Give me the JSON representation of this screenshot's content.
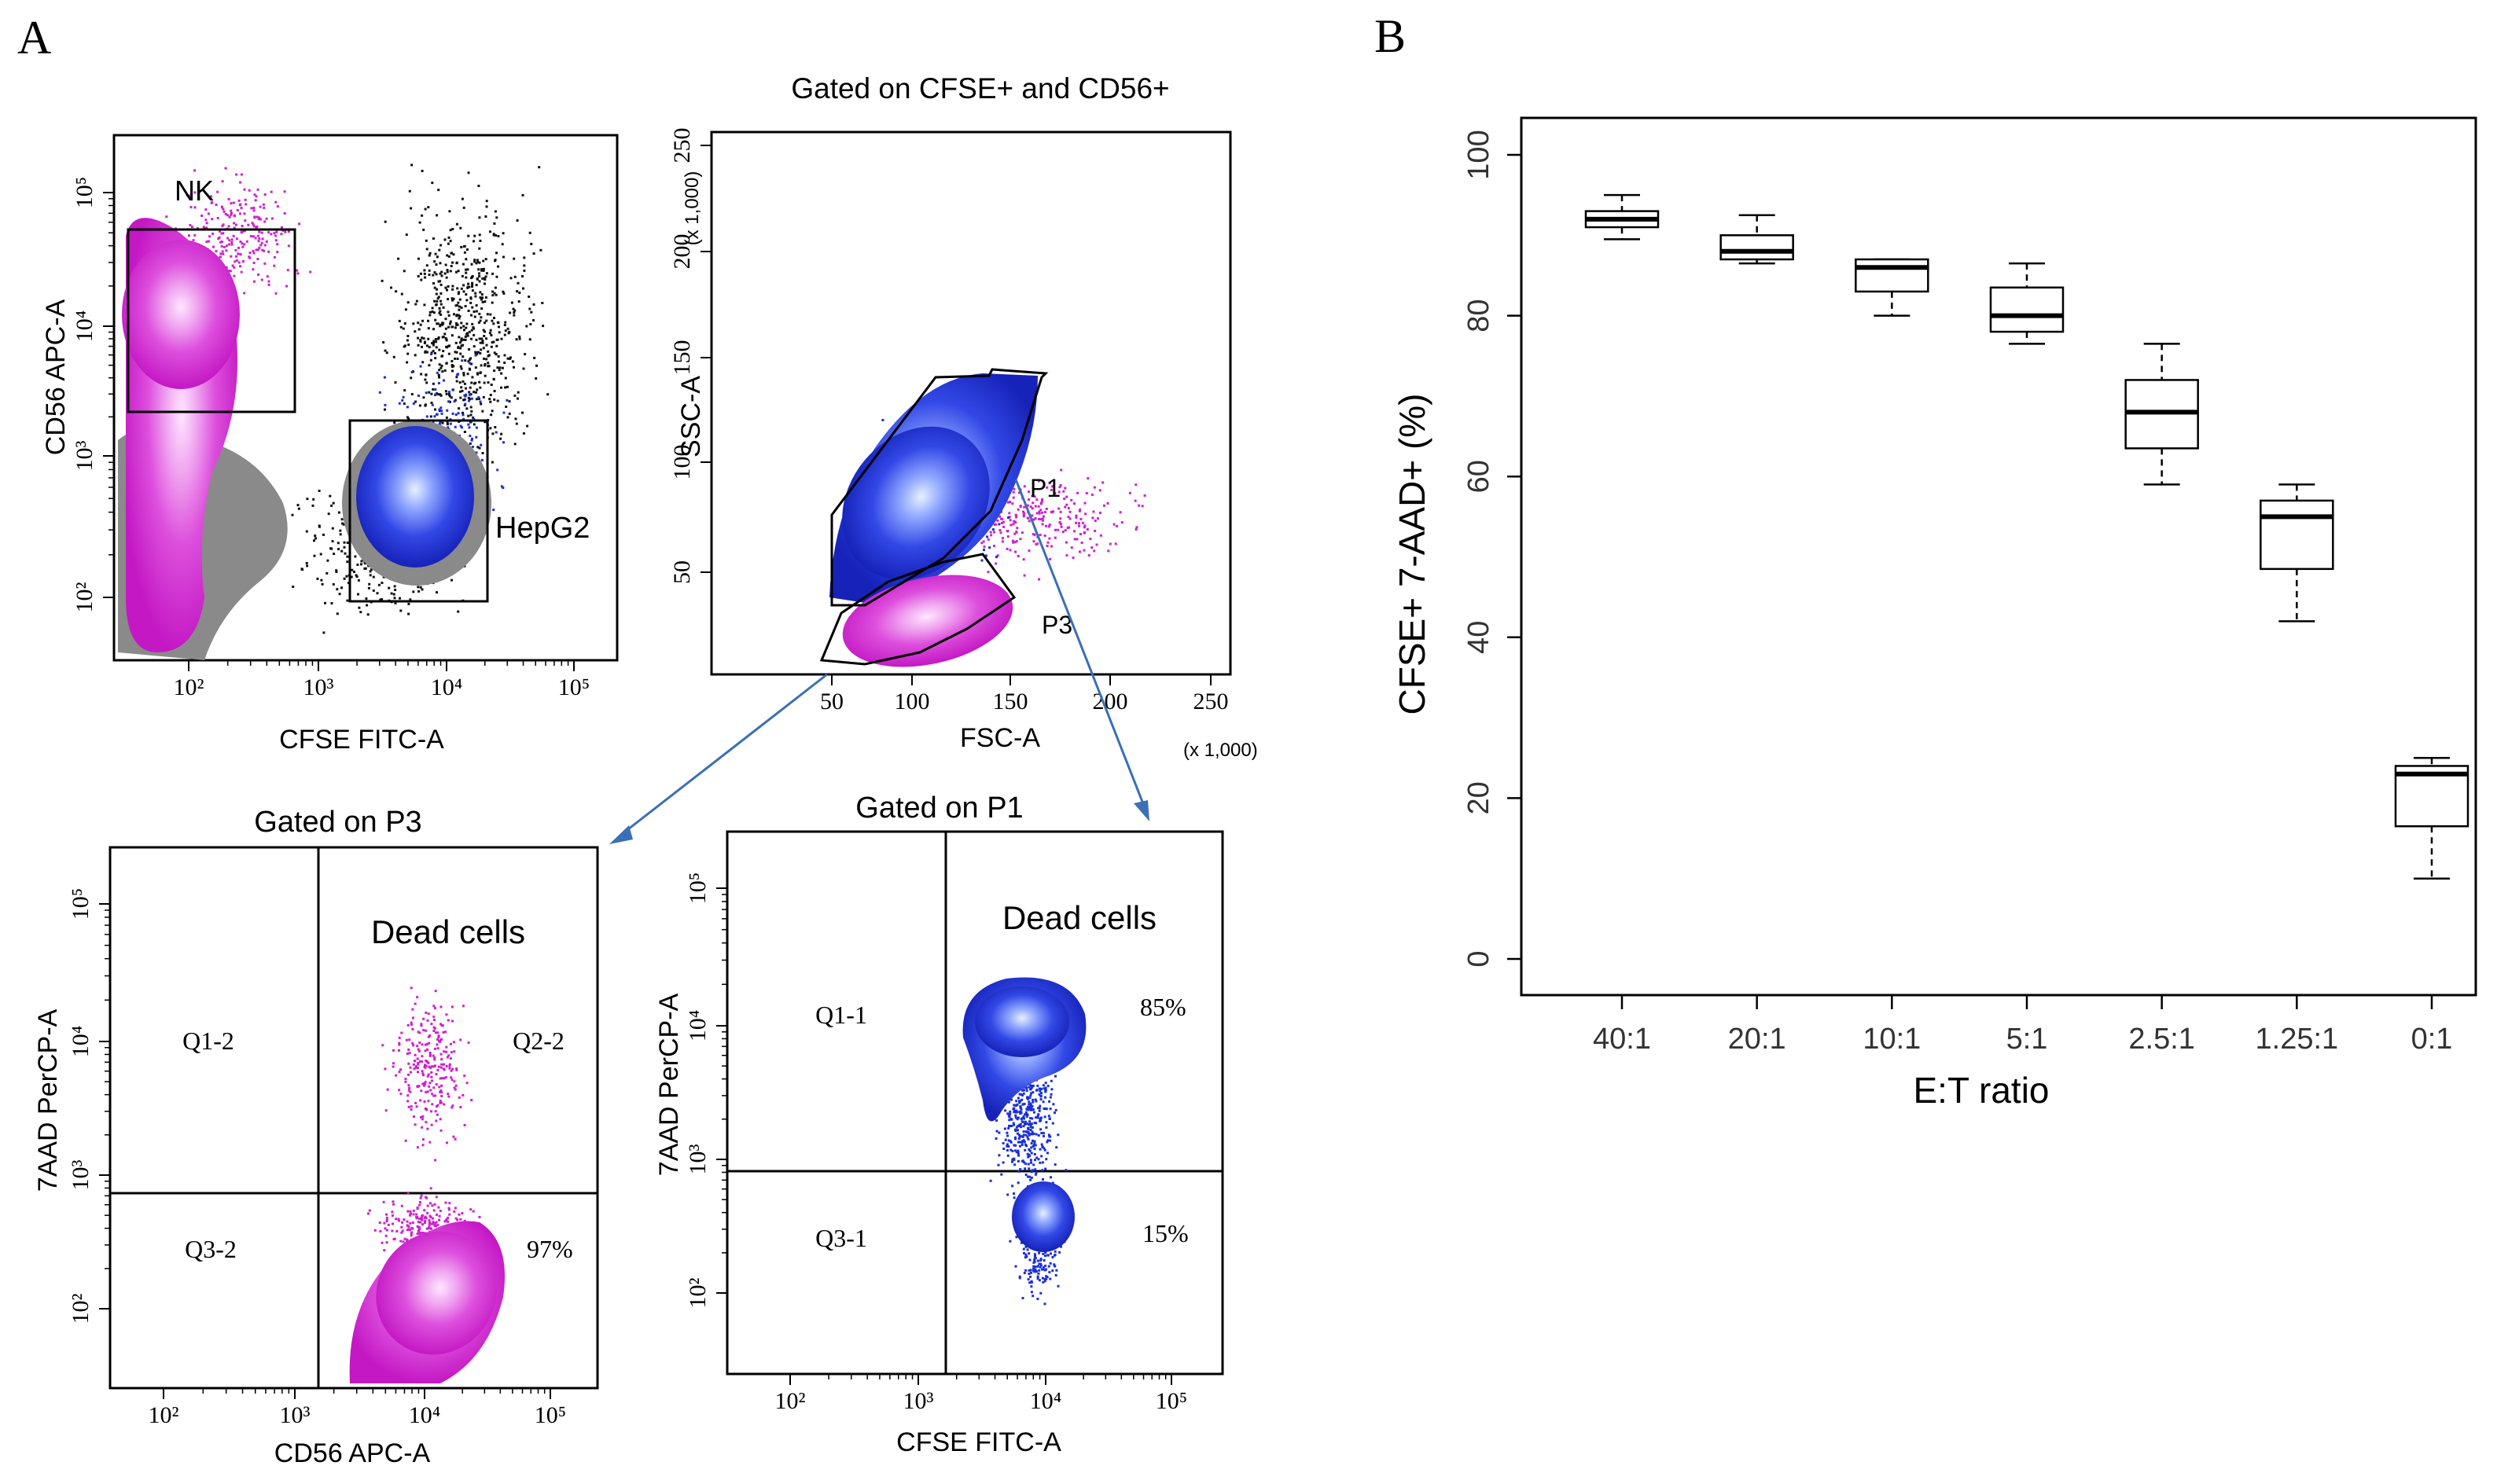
{
  "panel_labels": {
    "a": "A",
    "b": "B"
  },
  "panel_a": {
    "plot1": {
      "gates": {
        "nk": "NK",
        "hepg2": "HepG2"
      },
      "xlabel": "CFSE FITC-A",
      "ylabel": "CD56 APC-A",
      "xticks": [
        "10²",
        "10³",
        "10⁴",
        "10⁵"
      ],
      "yticks": [
        "10²",
        "10³",
        "10⁴",
        "10⁵"
      ]
    },
    "plot2": {
      "title": "Gated on CFSE+ and CD56+",
      "gates": {
        "p1": "P1",
        "p3": "P3"
      },
      "xlabel": "FSC-A",
      "ylabel": "SSC-A",
      "xticks": [
        "50",
        "100",
        "150",
        "200",
        "250"
      ],
      "yticks": [
        "50",
        "100",
        "150",
        "200",
        "250"
      ],
      "x_multiplier": "(x 1,000)",
      "y_multiplier": "(x 1,000)"
    },
    "plot3": {
      "title": "Gated on P3",
      "region_label": "Dead cells",
      "quadrants": {
        "q1": "Q1-2",
        "q2": "Q2-2",
        "q3": "Q3-2"
      },
      "percent": "97%",
      "xlabel": "CD56 APC-A",
      "ylabel": "7AAD PerCP-A",
      "xticks": [
        "10²",
        "10³",
        "10⁴",
        "10⁵"
      ],
      "yticks": [
        "10²",
        "10³",
        "10⁴",
        "10⁵"
      ]
    },
    "plot4": {
      "title": "Gated on P1",
      "region_label": "Dead cells",
      "quadrants": {
        "q1": "Q1-1",
        "q3": "Q3-1"
      },
      "percent_top": "85%",
      "percent_bottom": "15%",
      "xlabel": "CFSE FITC-A",
      "ylabel": "7AAD PerCP-A",
      "xticks": [
        "10²",
        "10³",
        "10⁴",
        "10⁵"
      ],
      "yticks": [
        "10²",
        "10³",
        "10⁴",
        "10⁵"
      ]
    }
  },
  "chart_data": {
    "type": "box",
    "title": "",
    "xlabel": "E:T ratio",
    "ylabel": "CFSE+ 7-AAD+ (%)",
    "ylim": [
      0,
      100
    ],
    "yticks": [
      0,
      20,
      40,
      60,
      80,
      100
    ],
    "categories": [
      "40:1",
      "20:1",
      "10:1",
      "5:1",
      "2.5:1",
      "1.25:1",
      "0:1"
    ],
    "boxes": [
      {
        "min": 89.5,
        "q1": 91,
        "median": 92,
        "q3": 93,
        "max": 95
      },
      {
        "min": 86.5,
        "q1": 87,
        "median": 88,
        "q3": 90,
        "max": 92.5
      },
      {
        "min": 80,
        "q1": 83,
        "median": 86,
        "q3": 87,
        "max": 87
      },
      {
        "min": 76.5,
        "q1": 78,
        "median": 80,
        "q3": 83.5,
        "max": 86.5
      },
      {
        "min": 59,
        "q1": 63.5,
        "median": 68,
        "q3": 72,
        "max": 76.5
      },
      {
        "min": 42,
        "q1": 48.5,
        "median": 55,
        "q3": 57,
        "max": 59
      },
      {
        "min": 10,
        "q1": 16.5,
        "median": 23,
        "q3": 24,
        "max": 25
      }
    ]
  },
  "colors": {
    "magenta": "#d020d0",
    "blue": "#1a2fd8",
    "gray": "#8a8a8a",
    "black": "#111111"
  }
}
